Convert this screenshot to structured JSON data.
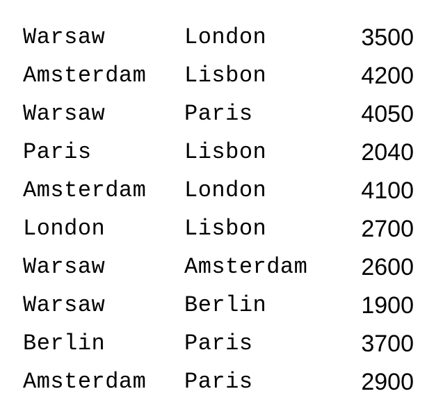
{
  "rows": [
    {
      "from": "Warsaw",
      "to": "London",
      "value": "3500"
    },
    {
      "from": "Amsterdam",
      "to": "Lisbon",
      "value": "4200"
    },
    {
      "from": "Warsaw",
      "to": "Paris",
      "value": "4050"
    },
    {
      "from": "Paris",
      "to": "Lisbon",
      "value": "2040"
    },
    {
      "from": "Amsterdam",
      "to": "London",
      "value": "4100"
    },
    {
      "from": "London",
      "to": "Lisbon",
      "value": "2700"
    },
    {
      "from": "Warsaw",
      "to": "Amsterdam",
      "value": "2600"
    },
    {
      "from": "Warsaw",
      "to": "Berlin",
      "value": "1900"
    },
    {
      "from": "Berlin",
      "to": "Paris",
      "value": "3700"
    },
    {
      "from": "Amsterdam",
      "to": "Paris",
      "value": "2900"
    }
  ]
}
